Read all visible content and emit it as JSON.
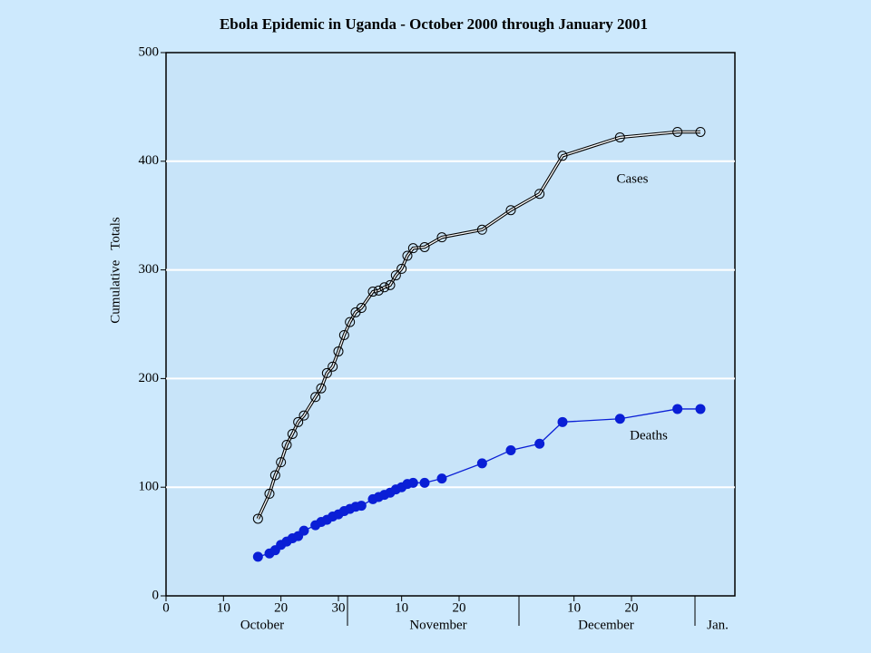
{
  "chart_data": {
    "type": "line",
    "title": "Ebola Epidemic in Uganda - October 2000 through January 2001",
    "y_label": "Cumulative   Totals",
    "months": [
      "October",
      "November",
      "December",
      "Jan."
    ],
    "xlim": [
      0,
      99
    ],
    "xticks": [
      0,
      10,
      20,
      30,
      {
        "value": 41,
        "label": "10"
      },
      {
        "value": 51,
        "label": "20"
      },
      {
        "value": 71,
        "label": "10"
      },
      {
        "value": 81,
        "label": "20"
      }
    ],
    "ylim": [
      0,
      500
    ],
    "yticks": [
      0,
      100,
      200,
      300,
      400,
      500
    ],
    "grid": true,
    "x": [
      16,
      18,
      19,
      20,
      21,
      22,
      23,
      24,
      26,
      27,
      28,
      29,
      30,
      31,
      32,
      33,
      34,
      36,
      37,
      38,
      39,
      40,
      41,
      42,
      43,
      45,
      48,
      55,
      60,
      65,
      69,
      79,
      89,
      93
    ],
    "series": [
      {
        "name": "Cases",
        "color": "#000000",
        "values": [
          71,
          94,
          111,
          123,
          139,
          149,
          160,
          166,
          183,
          191,
          205,
          211,
          225,
          240,
          252,
          261,
          265,
          280,
          281,
          284,
          286,
          295,
          301,
          313,
          320,
          321,
          330,
          337,
          355,
          370,
          405,
          422,
          427,
          427
        ]
      },
      {
        "name": "Deaths",
        "color": "#0a1fd6",
        "values": [
          36,
          39,
          42,
          47,
          50,
          53,
          55,
          60,
          65,
          68,
          70,
          73,
          75,
          78,
          80,
          82,
          83,
          89,
          91,
          93,
          95,
          98,
          100,
          103,
          104,
          104,
          108,
          122,
          134,
          140,
          160,
          163,
          172,
          172
        ]
      }
    ]
  }
}
